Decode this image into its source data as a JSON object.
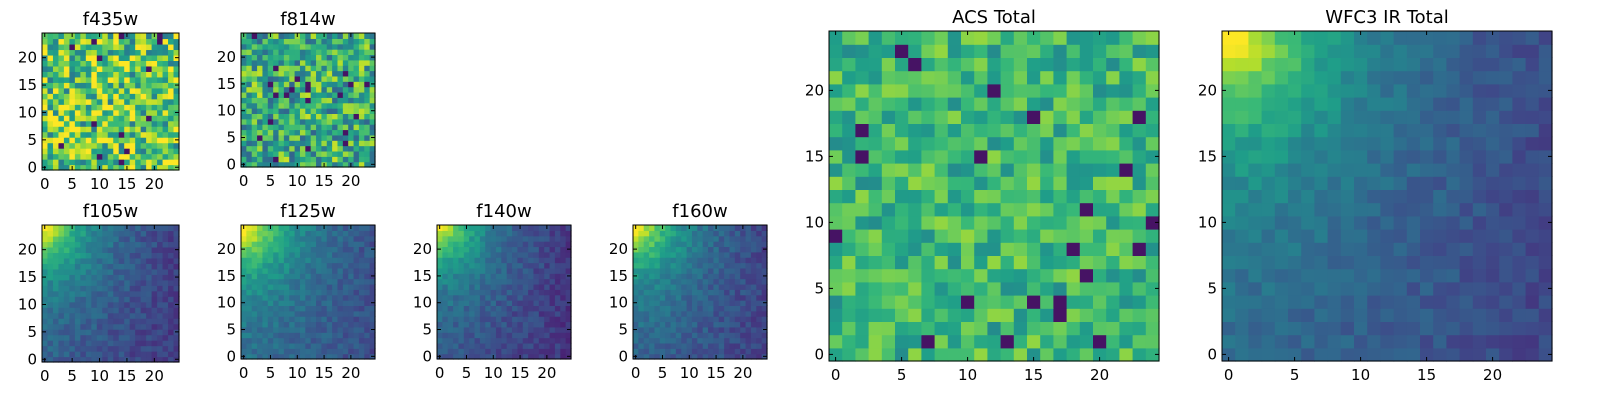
{
  "chart_data": [
    {
      "type": "heatmap",
      "title": "f435w",
      "cmap": "viridis",
      "grid": false,
      "image_size": 25,
      "xticks": [
        "0",
        "5",
        "10",
        "15",
        "20"
      ],
      "yticks": [
        "0",
        "5",
        "10",
        "15",
        "20"
      ],
      "xlim": [
        -0.5,
        24.5
      ],
      "ylim": [
        -0.5,
        24.5
      ],
      "pattern": "noise",
      "mean": 0.74,
      "spread": 0.34,
      "seed": 11
    },
    {
      "type": "heatmap",
      "title": "f814w",
      "cmap": "viridis",
      "grid": false,
      "image_size": 25,
      "xticks": [
        "0",
        "5",
        "10",
        "15",
        "20"
      ],
      "yticks": [
        "0",
        "5",
        "10",
        "15",
        "20"
      ],
      "xlim": [
        -0.5,
        24.5
      ],
      "ylim": [
        -0.5,
        24.5
      ],
      "pattern": "noise",
      "mean": 0.62,
      "spread": 0.3,
      "seed": 23
    },
    {
      "type": "heatmap",
      "title": "f105w",
      "cmap": "viridis",
      "grid": false,
      "image_size": 25,
      "xticks": [
        "0",
        "5",
        "10",
        "15",
        "20"
      ],
      "yticks": [
        "0",
        "5",
        "10",
        "15",
        "20"
      ],
      "xlim": [
        -0.5,
        24.5
      ],
      "ylim": [
        -0.5,
        24.5
      ],
      "pattern": "corner",
      "mean": 0.28,
      "spread": 0.14,
      "seed": 37
    },
    {
      "type": "heatmap",
      "title": "f125w",
      "cmap": "viridis",
      "grid": false,
      "image_size": 25,
      "xticks": [
        "0",
        "5",
        "10",
        "15",
        "20"
      ],
      "yticks": [
        "0",
        "5",
        "10",
        "15",
        "20"
      ],
      "xlim": [
        -0.5,
        24.5
      ],
      "ylim": [
        -0.5,
        24.5
      ],
      "pattern": "corner",
      "mean": 0.34,
      "spread": 0.14,
      "seed": 41
    },
    {
      "type": "heatmap",
      "title": "f140w",
      "cmap": "viridis",
      "grid": false,
      "image_size": 25,
      "xticks": [
        "0",
        "5",
        "10",
        "15",
        "20"
      ],
      "yticks": [
        "0",
        "5",
        "10",
        "15",
        "20"
      ],
      "xlim": [
        -0.5,
        24.5
      ],
      "ylim": [
        -0.5,
        24.5
      ],
      "pattern": "corner",
      "mean": 0.26,
      "spread": 0.14,
      "seed": 53
    },
    {
      "type": "heatmap",
      "title": "f160w",
      "cmap": "viridis",
      "grid": false,
      "image_size": 25,
      "xticks": [
        "0",
        "5",
        "10",
        "15",
        "20"
      ],
      "yticks": [
        "0",
        "5",
        "10",
        "15",
        "20"
      ],
      "xlim": [
        -0.5,
        24.5
      ],
      "ylim": [
        -0.5,
        24.5
      ],
      "pattern": "corner",
      "mean": 0.3,
      "spread": 0.14,
      "seed": 67
    },
    {
      "type": "heatmap",
      "title": "ACS Total",
      "cmap": "viridis",
      "grid": false,
      "image_size": 25,
      "xticks": [
        "0",
        "5",
        "10",
        "15",
        "20"
      ],
      "yticks": [
        "0",
        "5",
        "10",
        "15",
        "20"
      ],
      "xlim": [
        -0.5,
        24.5
      ],
      "ylim": [
        -0.5,
        24.5
      ],
      "pattern": "noise",
      "mean": 0.66,
      "spread": 0.18,
      "seed": 71
    },
    {
      "type": "heatmap",
      "title": "WFC3 IR Total",
      "cmap": "viridis",
      "grid": false,
      "image_size": 25,
      "xticks": [
        "0",
        "5",
        "10",
        "15",
        "20"
      ],
      "yticks": [
        "0",
        "5",
        "10",
        "15",
        "20"
      ],
      "xlim": [
        -0.5,
        24.5
      ],
      "ylim": [
        -0.5,
        24.5
      ],
      "pattern": "corner",
      "mean": 0.32,
      "spread": 0.12,
      "seed": 83
    }
  ]
}
